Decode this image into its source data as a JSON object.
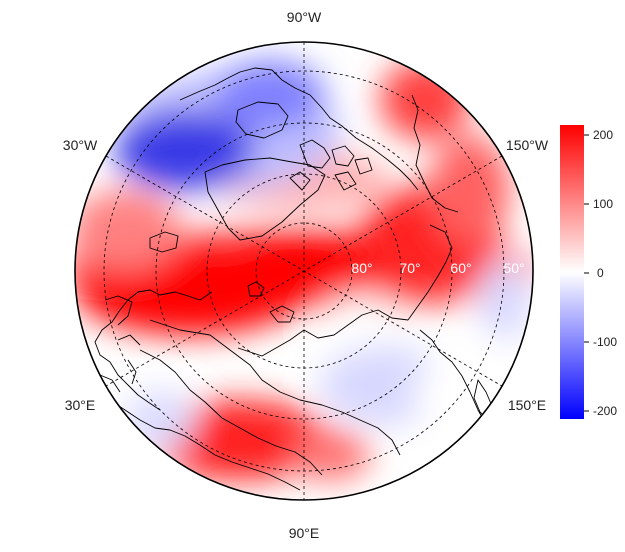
{
  "map": {
    "longitude_labels": {
      "top": "90°W",
      "left_upper": "30°W",
      "right_upper": "150°W",
      "left_lower": "30°E",
      "right_lower": "150°E",
      "bottom": "90°E"
    },
    "latitude_labels": [
      "80°",
      "70°",
      "60°",
      "50°"
    ],
    "projection": "north polar stereographic",
    "grid": "dashed",
    "colors": {
      "negative": "#0000ff",
      "neutral": "#ffffff",
      "positive": "#ff0000",
      "coastline": "#000000"
    }
  },
  "colorbar": {
    "ticks": [
      "200",
      "100",
      "0",
      "-100",
      "-200"
    ],
    "range": [
      -215,
      215
    ]
  }
}
